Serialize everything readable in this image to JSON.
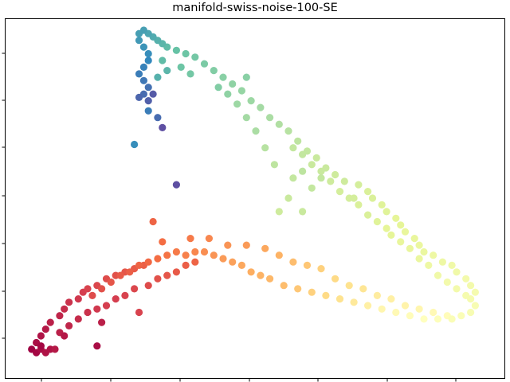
{
  "chart_data": {
    "type": "scatter",
    "title": "manifold-swiss-noise-100-SE",
    "xlabel": "",
    "ylabel": "",
    "xlim": [
      0,
      1
    ],
    "ylim": [
      0,
      1
    ],
    "x_tick_count": 7,
    "y_tick_count": 7,
    "tick_labels_visible": false,
    "grid": false,
    "colormap": "Spectral",
    "colormap_stops": [
      "#9e0142",
      "#d53e4f",
      "#f46d43",
      "#fdae61",
      "#fee08b",
      "#ffffbf",
      "#e6f598",
      "#abdda4",
      "#66c2a5",
      "#3288bd",
      "#5e4fa2"
    ],
    "series": [
      {
        "description_of_encoding": "each point: [x, y, t] where t in [0,1] maps onto the Spectral colormap",
        "points": [
          [
            0.02,
            0.05,
            0.0
          ],
          [
            0.03,
            0.04,
            0.01
          ],
          [
            0.04,
            0.05,
            0.02
          ],
          [
            0.05,
            0.04,
            0.03
          ],
          [
            0.06,
            0.05,
            0.03
          ],
          [
            0.07,
            0.05,
            0.04
          ],
          [
            0.03,
            0.07,
            0.02
          ],
          [
            0.04,
            0.09,
            0.03
          ],
          [
            0.05,
            0.11,
            0.04
          ],
          [
            0.06,
            0.13,
            0.05
          ],
          [
            0.08,
            0.15,
            0.06
          ],
          [
            0.09,
            0.17,
            0.07
          ],
          [
            0.1,
            0.19,
            0.08
          ],
          [
            0.12,
            0.2,
            0.09
          ],
          [
            0.13,
            0.22,
            0.1
          ],
          [
            0.14,
            0.23,
            0.11
          ],
          [
            0.16,
            0.24,
            0.12
          ],
          [
            0.18,
            0.26,
            0.13
          ],
          [
            0.2,
            0.27,
            0.14
          ],
          [
            0.22,
            0.28,
            0.15
          ],
          [
            0.24,
            0.29,
            0.16
          ],
          [
            0.26,
            0.3,
            0.17
          ],
          [
            0.08,
            0.1,
            0.05
          ],
          [
            0.1,
            0.12,
            0.06
          ],
          [
            0.12,
            0.14,
            0.07
          ],
          [
            0.14,
            0.16,
            0.08
          ],
          [
            0.16,
            0.17,
            0.09
          ],
          [
            0.18,
            0.18,
            0.1
          ],
          [
            0.2,
            0.2,
            0.1
          ],
          [
            0.22,
            0.21,
            0.11
          ],
          [
            0.24,
            0.23,
            0.12
          ],
          [
            0.25,
            0.16,
            0.11
          ],
          [
            0.27,
            0.24,
            0.13
          ],
          [
            0.29,
            0.26,
            0.14
          ],
          [
            0.31,
            0.27,
            0.15
          ],
          [
            0.33,
            0.28,
            0.16
          ],
          [
            0.35,
            0.3,
            0.17
          ],
          [
            0.37,
            0.31,
            0.18
          ],
          [
            0.15,
            0.21,
            0.13
          ],
          [
            0.17,
            0.23,
            0.14
          ],
          [
            0.19,
            0.25,
            0.15
          ],
          [
            0.21,
            0.27,
            0.16
          ],
          [
            0.23,
            0.28,
            0.17
          ],
          [
            0.25,
            0.3,
            0.18
          ],
          [
            0.27,
            0.31,
            0.19
          ],
          [
            0.29,
            0.32,
            0.2
          ],
          [
            0.31,
            0.33,
            0.21
          ],
          [
            0.33,
            0.34,
            0.22
          ],
          [
            0.35,
            0.33,
            0.23
          ],
          [
            0.37,
            0.34,
            0.24
          ],
          [
            0.39,
            0.34,
            0.25
          ],
          [
            0.41,
            0.33,
            0.26
          ],
          [
            0.43,
            0.32,
            0.27
          ],
          [
            0.45,
            0.31,
            0.28
          ],
          [
            0.47,
            0.3,
            0.29
          ],
          [
            0.49,
            0.28,
            0.3
          ],
          [
            0.51,
            0.27,
            0.31
          ],
          [
            0.53,
            0.26,
            0.32
          ],
          [
            0.28,
            0.43,
            0.18
          ],
          [
            0.3,
            0.37,
            0.2
          ],
          [
            0.36,
            0.38,
            0.22
          ],
          [
            0.4,
            0.38,
            0.24
          ],
          [
            0.44,
            0.36,
            0.26
          ],
          [
            0.48,
            0.36,
            0.27
          ],
          [
            0.52,
            0.35,
            0.29
          ],
          [
            0.55,
            0.33,
            0.31
          ],
          [
            0.58,
            0.31,
            0.33
          ],
          [
            0.61,
            0.3,
            0.35
          ],
          [
            0.64,
            0.29,
            0.37
          ],
          [
            0.67,
            0.26,
            0.39
          ],
          [
            0.7,
            0.24,
            0.41
          ],
          [
            0.73,
            0.23,
            0.42
          ],
          [
            0.76,
            0.21,
            0.44
          ],
          [
            0.79,
            0.2,
            0.45
          ],
          [
            0.82,
            0.18,
            0.46
          ],
          [
            0.85,
            0.17,
            0.47
          ],
          [
            0.88,
            0.16,
            0.48
          ],
          [
            0.91,
            0.15,
            0.49
          ],
          [
            0.56,
            0.24,
            0.33
          ],
          [
            0.59,
            0.23,
            0.35
          ],
          [
            0.62,
            0.22,
            0.37
          ],
          [
            0.65,
            0.21,
            0.39
          ],
          [
            0.68,
            0.2,
            0.41
          ],
          [
            0.71,
            0.19,
            0.43
          ],
          [
            0.74,
            0.18,
            0.45
          ],
          [
            0.77,
            0.17,
            0.47
          ],
          [
            0.8,
            0.16,
            0.48
          ],
          [
            0.83,
            0.15,
            0.49
          ],
          [
            0.86,
            0.14,
            0.5
          ],
          [
            0.89,
            0.14,
            0.51
          ],
          [
            0.92,
            0.14,
            0.52
          ],
          [
            0.94,
            0.15,
            0.52
          ],
          [
            0.96,
            0.16,
            0.53
          ],
          [
            0.97,
            0.18,
            0.53
          ],
          [
            0.96,
            0.2,
            0.54
          ],
          [
            0.97,
            0.22,
            0.54
          ],
          [
            0.96,
            0.24,
            0.55
          ],
          [
            0.95,
            0.26,
            0.55
          ],
          [
            0.93,
            0.28,
            0.56
          ],
          [
            0.92,
            0.3,
            0.56
          ],
          [
            0.9,
            0.31,
            0.57
          ],
          [
            0.88,
            0.33,
            0.57
          ],
          [
            0.86,
            0.34,
            0.58
          ],
          [
            0.85,
            0.36,
            0.58
          ],
          [
            0.84,
            0.38,
            0.59
          ],
          [
            0.82,
            0.4,
            0.59
          ],
          [
            0.81,
            0.42,
            0.6
          ],
          [
            0.8,
            0.44,
            0.6
          ],
          [
            0.78,
            0.46,
            0.61
          ],
          [
            0.77,
            0.48,
            0.61
          ],
          [
            0.75,
            0.5,
            0.62
          ],
          [
            0.74,
            0.52,
            0.62
          ],
          [
            0.72,
            0.54,
            0.63
          ],
          [
            0.95,
            0.21,
            0.54
          ],
          [
            0.93,
            0.23,
            0.55
          ],
          [
            0.91,
            0.25,
            0.55
          ],
          [
            0.89,
            0.27,
            0.56
          ],
          [
            0.87,
            0.3,
            0.57
          ],
          [
            0.85,
            0.32,
            0.58
          ],
          [
            0.83,
            0.35,
            0.59
          ],
          [
            0.81,
            0.37,
            0.59
          ],
          [
            0.79,
            0.39,
            0.6
          ],
          [
            0.78,
            0.41,
            0.6
          ],
          [
            0.76,
            0.43,
            0.61
          ],
          [
            0.74,
            0.45,
            0.62
          ],
          [
            0.72,
            0.48,
            0.62
          ],
          [
            0.7,
            0.5,
            0.63
          ],
          [
            0.68,
            0.52,
            0.63
          ],
          [
            0.66,
            0.55,
            0.64
          ],
          [
            0.64,
            0.58,
            0.65
          ],
          [
            0.62,
            0.6,
            0.65
          ],
          [
            0.6,
            0.63,
            0.66
          ],
          [
            0.58,
            0.65,
            0.66
          ],
          [
            0.71,
            0.5,
            0.63
          ],
          [
            0.69,
            0.55,
            0.64
          ],
          [
            0.67,
            0.57,
            0.64
          ],
          [
            0.65,
            0.59,
            0.65
          ],
          [
            0.63,
            0.62,
            0.65
          ],
          [
            0.61,
            0.64,
            0.66
          ],
          [
            0.59,
            0.67,
            0.67
          ],
          [
            0.57,
            0.7,
            0.68
          ],
          [
            0.55,
            0.72,
            0.69
          ],
          [
            0.53,
            0.74,
            0.7
          ],
          [
            0.51,
            0.77,
            0.71
          ],
          [
            0.49,
            0.79,
            0.72
          ],
          [
            0.47,
            0.82,
            0.73
          ],
          [
            0.45,
            0.84,
            0.74
          ],
          [
            0.43,
            0.86,
            0.75
          ],
          [
            0.41,
            0.88,
            0.76
          ],
          [
            0.39,
            0.9,
            0.77
          ],
          [
            0.37,
            0.92,
            0.78
          ],
          [
            0.35,
            0.93,
            0.79
          ],
          [
            0.55,
            0.46,
            0.64
          ],
          [
            0.57,
            0.5,
            0.65
          ],
          [
            0.6,
            0.46,
            0.65
          ],
          [
            0.62,
            0.53,
            0.66
          ],
          [
            0.58,
            0.56,
            0.66
          ],
          [
            0.54,
            0.6,
            0.67
          ],
          [
            0.6,
            0.58,
            0.67
          ],
          [
            0.64,
            0.56,
            0.66
          ],
          [
            0.52,
            0.65,
            0.68
          ],
          [
            0.5,
            0.7,
            0.7
          ],
          [
            0.48,
            0.74,
            0.71
          ],
          [
            0.46,
            0.78,
            0.72
          ],
          [
            0.44,
            0.81,
            0.74
          ],
          [
            0.48,
            0.86,
            0.75
          ],
          [
            0.42,
            0.83,
            0.76
          ],
          [
            0.33,
            0.94,
            0.8
          ],
          [
            0.31,
            0.95,
            0.81
          ],
          [
            0.3,
            0.96,
            0.82
          ],
          [
            0.29,
            0.97,
            0.83
          ],
          [
            0.28,
            0.98,
            0.84
          ],
          [
            0.27,
            0.99,
            0.85
          ],
          [
            0.26,
            1.0,
            0.86
          ],
          [
            0.25,
            0.99,
            0.86
          ],
          [
            0.25,
            0.97,
            0.87
          ],
          [
            0.26,
            0.95,
            0.88
          ],
          [
            0.27,
            0.93,
            0.89
          ],
          [
            0.27,
            0.91,
            0.9
          ],
          [
            0.26,
            0.89,
            0.91
          ],
          [
            0.25,
            0.87,
            0.92
          ],
          [
            0.26,
            0.85,
            0.93
          ],
          [
            0.27,
            0.83,
            0.94
          ],
          [
            0.26,
            0.81,
            0.95
          ],
          [
            0.25,
            0.8,
            0.96
          ],
          [
            0.27,
            0.79,
            0.97
          ],
          [
            0.28,
            0.81,
            0.98
          ],
          [
            0.34,
            0.89,
            0.79
          ],
          [
            0.36,
            0.87,
            0.78
          ],
          [
            0.31,
            0.88,
            0.82
          ],
          [
            0.29,
            0.86,
            0.83
          ],
          [
            0.3,
            0.91,
            0.81
          ],
          [
            0.27,
            0.76,
            0.92
          ],
          [
            0.29,
            0.74,
            0.95
          ],
          [
            0.24,
            0.66,
            0.89
          ],
          [
            0.3,
            0.71,
            1.0
          ],
          [
            0.33,
            0.54,
            1.0
          ],
          [
            0.16,
            0.06,
            0.02
          ],
          [
            0.17,
            0.13,
            0.05
          ],
          [
            0.04,
            0.06,
            0.01
          ],
          [
            0.09,
            0.09,
            0.04
          ]
        ]
      }
    ]
  }
}
